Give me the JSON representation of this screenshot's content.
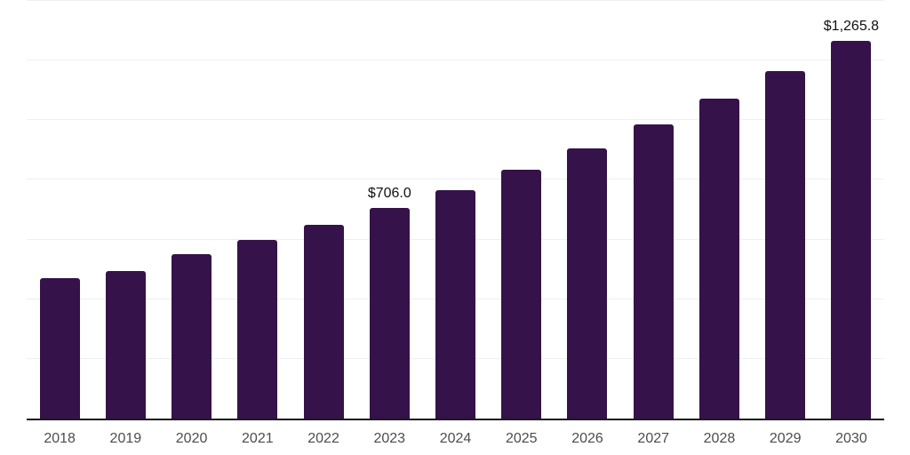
{
  "chart_data": {
    "type": "bar",
    "categories": [
      "2018",
      "2019",
      "2020",
      "2021",
      "2022",
      "2023",
      "2024",
      "2025",
      "2026",
      "2027",
      "2028",
      "2029",
      "2030"
    ],
    "values": [
      470,
      496,
      550,
      598,
      649,
      706.0,
      767,
      834,
      907,
      986,
      1071,
      1165,
      1265.8
    ],
    "data_labels": {
      "2023": "$706.0",
      "2030": "$1,265.8"
    },
    "xlabel": "",
    "ylabel": "",
    "ylim": [
      0,
      1400
    ],
    "gridline_step": 200,
    "grid": true,
    "legend": "none",
    "colors": {
      "bar": "#351249",
      "gridline": "#efeff2",
      "axis_line": "#1c1c1c",
      "tick_label": "#4d4d4d",
      "data_label": "#111111",
      "background": "#ffffff"
    }
  }
}
